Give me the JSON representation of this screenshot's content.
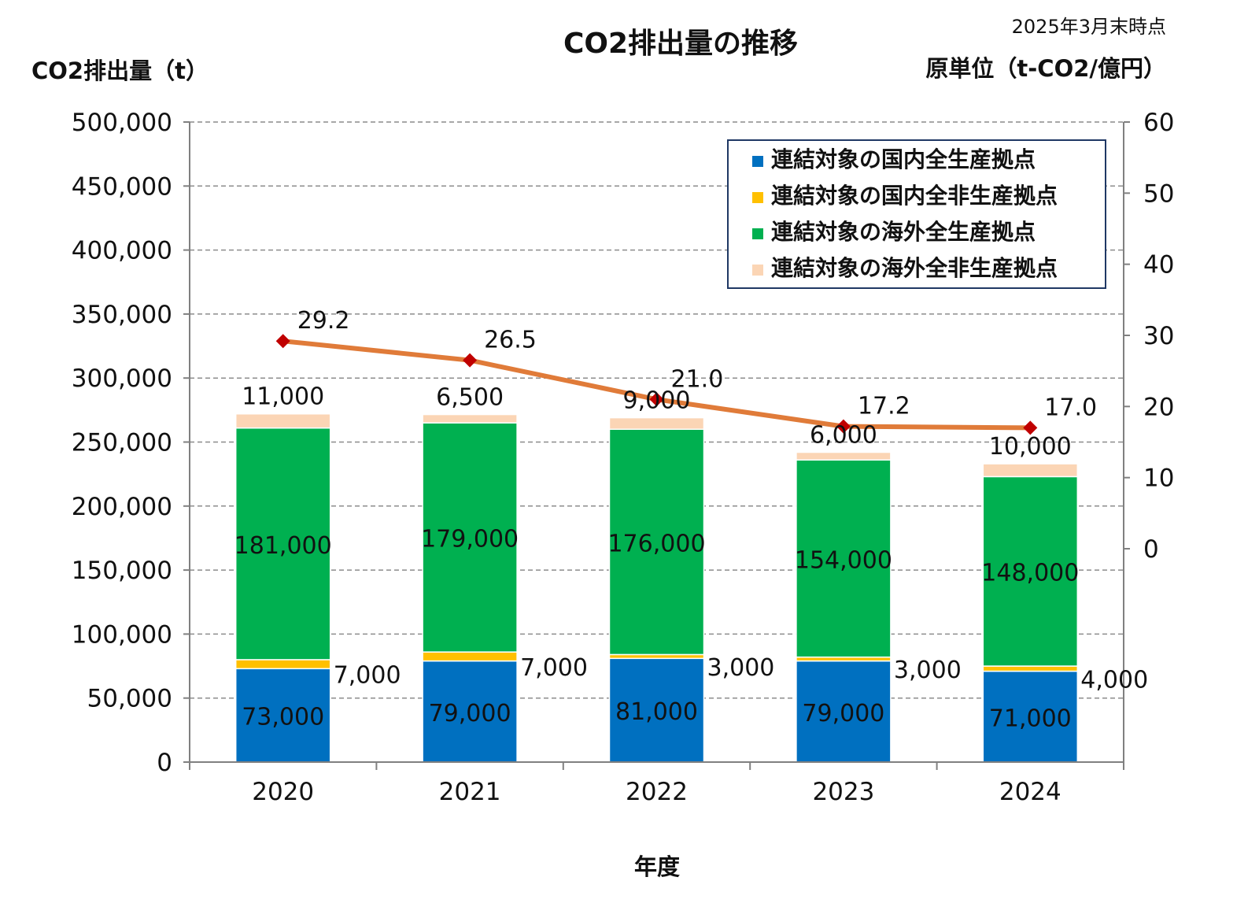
{
  "chart_data": {
    "type": "bar",
    "stacked": true,
    "title": "CO2排出量の推移",
    "as_of_note": "2025年3月末時点",
    "xlabel": "年度",
    "ylabel": "CO2排出量（t）",
    "y2label": "原単位（t-CO2/億円）",
    "ylim": [
      0,
      500000
    ],
    "y_ticks": [
      "0",
      "50,000",
      "100,000",
      "150,000",
      "200,000",
      "250,000",
      "300,000",
      "350,000",
      "400,000",
      "450,000",
      "500,000"
    ],
    "y2lim": [
      -30,
      60
    ],
    "y2_ticks": [
      "0",
      "10",
      "20",
      "30",
      "40",
      "50",
      "60"
    ],
    "grid": true,
    "legend_position": "top-right",
    "categories": [
      "2020",
      "2021",
      "2022",
      "2023",
      "2024"
    ],
    "series": [
      {
        "name": "連結対象の国内全生産拠点",
        "color": "#0070C0",
        "values": [
          73000,
          79000,
          81000,
          79000,
          71000
        ],
        "labels": [
          "73,000",
          "79,000",
          "81,000",
          "79,000",
          "71,000"
        ]
      },
      {
        "name": "連結対象の国内全非生産拠点",
        "color": "#FFC000",
        "values": [
          7000,
          7000,
          3000,
          3000,
          4000
        ],
        "labels": [
          "7,000",
          "7,000",
          "3,000",
          "3,000",
          "4,000"
        ]
      },
      {
        "name": "連結対象の海外全生産拠点",
        "color": "#00B050",
        "values": [
          181000,
          179000,
          176000,
          154000,
          148000
        ],
        "labels": [
          "181,000",
          "179,000",
          "176,000",
          "154,000",
          "148,000"
        ]
      },
      {
        "name": "連結対象の海外全非生産拠点",
        "color": "#FBD5B5",
        "values": [
          11000,
          6500,
          9000,
          6000,
          10000
        ],
        "labels": [
          "11,000",
          "6,500",
          "9,000",
          "6,000",
          "10,000"
        ]
      }
    ],
    "line_series": {
      "name": "原単位",
      "axis": "secondary",
      "color": "#E07B39",
      "marker_color": "#C00000",
      "values": [
        29.2,
        26.5,
        21.0,
        17.2,
        17.0
      ],
      "labels": [
        "29.2",
        "26.5",
        "21.0",
        "17.2",
        "17.0"
      ]
    }
  }
}
